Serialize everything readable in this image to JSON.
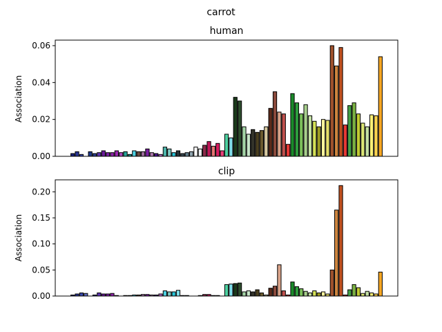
{
  "figure": {
    "suptitle": "carrot"
  },
  "chart_data": [
    {
      "type": "bar",
      "title": "human",
      "xlabel": "",
      "ylabel": "Association",
      "ylim": [
        0,
        0.063
      ],
      "yticks": [
        0.0,
        0.02,
        0.04,
        0.06
      ],
      "ytick_labels": [
        "0.00",
        "0.02",
        "0.04",
        "0.06"
      ],
      "grid": false,
      "legend": "none",
      "values": [
        0.0015,
        0.0025,
        0.001,
        0,
        0.0025,
        0.0015,
        0.002,
        0.003,
        0.002,
        0.002,
        0.003,
        0.002,
        0.0025,
        0.001,
        0.003,
        0.0025,
        0.0025,
        0.004,
        0.002,
        0.0015,
        0.001,
        0.005,
        0.004,
        0.002,
        0.003,
        0.0015,
        0.002,
        0.0025,
        0.005,
        0.004,
        0.006,
        0.008,
        0.0055,
        0.007,
        0.003,
        0.012,
        0.01,
        0.032,
        0.03,
        0.016,
        0.012,
        0.0145,
        0.013,
        0.014,
        0.016,
        0.026,
        0.035,
        0.024,
        0.023,
        0.0065,
        0.034,
        0.029,
        0.023,
        0.028,
        0.022,
        0.019,
        0.016,
        0.02,
        0.0195,
        0.06,
        0.049,
        0.059,
        0.017,
        0.0275,
        0.029,
        0.023,
        0.018,
        0.016,
        0.0225,
        0.022,
        0.054
      ],
      "colors": [
        "#1a237e",
        "#283593",
        "#3949ab",
        "#5c6bc0",
        "#1e3a8a",
        "#2c3e8c",
        "#5e35b1",
        "#6a1b9a",
        "#7b1fa2",
        "#8e24aa",
        "#9c27b0",
        "#ab47bc",
        "#26a69a",
        "#00897b",
        "#4dd0e1",
        "#6d4c41",
        "#9c6b9c",
        "#7b1fa2",
        "#b07bb0",
        "#4a148c",
        "#ba68c8",
        "#4db6ac",
        "#80cbc4",
        "#26c6da",
        "#263238",
        "#37474f",
        "#607d8b",
        "#90a4ae",
        "#ffffff",
        "#eceff1",
        "#8d2b4b",
        "#c2185b",
        "#e57373",
        "#d81b60",
        "#ec407a",
        "#4dd0a0",
        "#80deea",
        "#1b3a1b",
        "#2e4d2e",
        "#a5d6a7",
        "#c8e6c9",
        "#33332a",
        "#4a3f1f",
        "#6b5a2e",
        "#d7c9a0",
        "#5c2a1a",
        "#8b4a3c",
        "#d9a38a",
        "#c0504d",
        "#e53935",
        "#1a8a2a",
        "#2e9e3e",
        "#7bbf5a",
        "#a8d08d",
        "#c5e1a5",
        "#d4e157",
        "#9e9d24",
        "#fff59d",
        "#e6e06a",
        "#a0522d",
        "#cd853f",
        "#c0501f",
        "#e53935",
        "#43a047",
        "#7cb342",
        "#c0ca33",
        "#dce775",
        "#c5e1a5",
        "#fff176",
        "#ffd54f",
        "#f5a623"
      ]
    },
    {
      "type": "bar",
      "title": "clip",
      "xlabel": "",
      "ylabel": "Association",
      "ylim": [
        0,
        0.223
      ],
      "yticks": [
        0.0,
        0.05,
        0.1,
        0.15,
        0.2
      ],
      "ytick_labels": [
        "0.00",
        "0.05",
        "0.10",
        "0.15",
        "0.20"
      ],
      "grid": false,
      "legend": "none",
      "values": [
        0.002,
        0.004,
        0.006,
        0.005,
        0,
        0.002,
        0.006,
        0.004,
        0.004,
        0.005,
        0.001,
        0,
        0.001,
        0.001,
        0.002,
        0.002,
        0.003,
        0.003,
        0.002,
        0.002,
        0.004,
        0.01,
        0.008,
        0.008,
        0.011,
        0.001,
        0.001,
        0,
        0,
        0.001,
        0.003,
        0.003,
        0.001,
        0.001,
        0,
        0.022,
        0.023,
        0.024,
        0.025,
        0.008,
        0.01,
        0.008,
        0.012,
        0.006,
        0.002,
        0.015,
        0.019,
        0.06,
        0.01,
        0.002,
        0.027,
        0.018,
        0.014,
        0.009,
        0.006,
        0.01,
        0.006,
        0.008,
        0.004,
        0.05,
        0.165,
        0.212,
        0.002,
        0.012,
        0.022,
        0.016,
        0.005,
        0.009,
        0.006,
        0.004,
        0.046
      ],
      "colors": [
        "#1a237e",
        "#283593",
        "#3949ab",
        "#5c6bc0",
        "#1e3a8a",
        "#2c3e8c",
        "#5e35b1",
        "#6a1b9a",
        "#7b1fa2",
        "#8e24aa",
        "#9c27b0",
        "#ab47bc",
        "#26a69a",
        "#00897b",
        "#4dd0e1",
        "#6d4c41",
        "#9c6b9c",
        "#7b1fa2",
        "#b07bb0",
        "#4a148c",
        "#ba68c8",
        "#4dd0e1",
        "#80cbc4",
        "#26c6da",
        "#80deea",
        "#37474f",
        "#607d8b",
        "#90a4ae",
        "#ffffff",
        "#eceff1",
        "#8d2b4b",
        "#c2185b",
        "#e57373",
        "#d81b60",
        "#ec407a",
        "#4dd0a0",
        "#80deea",
        "#1b3a1b",
        "#2e4d2e",
        "#a5d6a7",
        "#c8e6c9",
        "#33332a",
        "#4a3f1f",
        "#6b5a2e",
        "#d7c9a0",
        "#5c2a1a",
        "#8b4a3c",
        "#d9a38a",
        "#c0504d",
        "#e53935",
        "#1a8a2a",
        "#2e9e3e",
        "#7bbf5a",
        "#a8d08d",
        "#c5e1a5",
        "#d4e157",
        "#9e9d24",
        "#fff59d",
        "#e6e06a",
        "#a0522d",
        "#cd853f",
        "#c0501f",
        "#e53935",
        "#43a047",
        "#7cb342",
        "#c0ca33",
        "#dce775",
        "#c5e1a5",
        "#fff176",
        "#ffd54f",
        "#f5a623"
      ]
    }
  ]
}
